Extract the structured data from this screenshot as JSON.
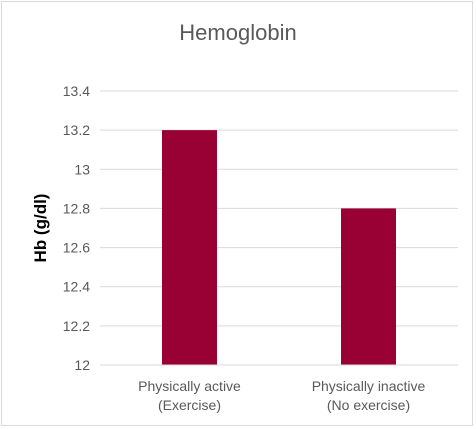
{
  "chart_data": {
    "type": "bar",
    "title": "Hemoglobin",
    "xlabel": "",
    "ylabel": "Hb (g/dl)",
    "categories": [
      [
        "Physically active",
        "(Exercise)"
      ],
      [
        "Physically inactive",
        "(No exercise)"
      ]
    ],
    "values": [
      13.2,
      12.8
    ],
    "ylim": [
      12,
      13.4
    ],
    "yticks": [
      "12",
      "12.2",
      "12.4",
      "12.6",
      "12.8",
      "13",
      "13.2",
      "13.4"
    ],
    "grid": true,
    "legend": "none",
    "bar_color": "#990033",
    "grid_color": "#d9d9d9"
  }
}
